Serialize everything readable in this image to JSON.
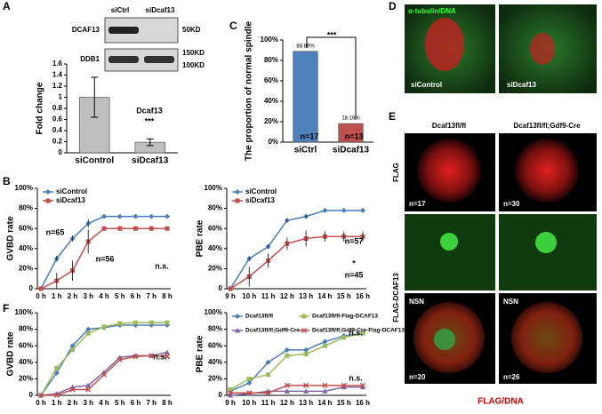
{
  "panels": {
    "A": "A",
    "B": "B",
    "C": "C",
    "D": "D",
    "E": "E",
    "F": "F"
  },
  "blot": {
    "lanes": [
      "siCtrl",
      "siDcaf13"
    ],
    "proteins": [
      "DCAF13",
      "DDB1"
    ],
    "sizes": [
      "50KD",
      "150KD",
      "100KD"
    ]
  },
  "panel_d": {
    "stain": "α-tubulin/DNA",
    "labels": [
      "siControl",
      "siDcaf13"
    ]
  },
  "panel_e": {
    "columns": [
      "Dcaf13fl/fl",
      "Dcaf13fl/fl;Gdf9-Cre"
    ],
    "rows": [
      "FLAG",
      "FLAG-DCAF13"
    ],
    "counts": [
      "n=17",
      "n=30",
      "n=20",
      "n=26"
    ],
    "stage": [
      "NSN",
      "NSN"
    ],
    "stain": "FLAG/DNA"
  },
  "chart_data": [
    {
      "type": "bar",
      "y_label": "Fold change",
      "categories": [
        "siControl",
        "siDcaf13"
      ],
      "values": [
        1.0,
        0.19
      ],
      "errors": [
        0.36,
        0.06
      ],
      "colors": [
        "#bfbfbf",
        "#bfbfbf"
      ],
      "ylim": [
        0,
        1.6
      ],
      "yticks": [
        0,
        0.2,
        0.4,
        0.6,
        0.8,
        1,
        1.2,
        1.4,
        1.6
      ],
      "annotations": [
        "Dcaf13",
        "***"
      ]
    },
    {
      "type": "bar",
      "y_label": "The proportion of normal spindle",
      "categories": [
        "siCtrl",
        "siDcaf13"
      ],
      "values": [
        88.89,
        18.18
      ],
      "value_labels": [
        "88.89%",
        "18.18%"
      ],
      "colors": [
        "#4f81bd",
        "#c0504d"
      ],
      "ylim": [
        0,
        100
      ],
      "yticks": [
        {
          "value": 0,
          "label": "0%"
        },
        {
          "value": 20,
          "label": "20%"
        },
        {
          "value": 40,
          "label": "40%"
        },
        {
          "value": 60,
          "label": "60%"
        },
        {
          "value": 80,
          "label": "80%"
        },
        {
          "value": 100,
          "label": "100%"
        }
      ],
      "annotations": [
        "n=17",
        "n=13",
        "***"
      ]
    },
    {
      "type": "line",
      "y_label": "GVBD rate",
      "categories": [
        "0 h",
        "1 h",
        "2 h",
        "3 h",
        "4 h",
        "5 h",
        "6 h",
        "7 h",
        "8 h"
      ],
      "series": [
        {
          "name": "siControl",
          "color": "#4a7ebb",
          "values": [
            0,
            30,
            50,
            65,
            72,
            72,
            72,
            72,
            72
          ],
          "errors": [
            0,
            3,
            3,
            4,
            0,
            0,
            0,
            0,
            0
          ]
        },
        {
          "name": "siDcaf13",
          "color": "#c0504d",
          "values": [
            0,
            8,
            18,
            47,
            60,
            60,
            60,
            60,
            60
          ],
          "errors": [
            0,
            8,
            10,
            12,
            0,
            0,
            0,
            0,
            0
          ]
        }
      ],
      "ylim": [
        0,
        100
      ],
      "yticks": [
        0,
        {
          "value": 20,
          "label": "20%"
        },
        {
          "value": 40,
          "label": "40%"
        },
        {
          "value": 60,
          "label": "60%"
        },
        {
          "value": 80,
          "label": "80%"
        },
        {
          "value": 100,
          "label": "100%"
        }
      ],
      "legend": "upper left",
      "annotations": [
        "n=65",
        "n=56",
        "n.s."
      ]
    },
    {
      "type": "line",
      "y_label": "PBE rate",
      "categories": [
        "9 h",
        "10 h",
        "11 h",
        "12 h",
        "13 h",
        "14 h",
        "15 h",
        "16 h"
      ],
      "series": [
        {
          "name": "siControl",
          "color": "#4a7ebb",
          "values": [
            0,
            30,
            42,
            68,
            72,
            78,
            78,
            78
          ],
          "errors": [
            0,
            2,
            2,
            2,
            2,
            0,
            0,
            0
          ]
        },
        {
          "name": "siDcaf13",
          "color": "#c0504d",
          "values": [
            0,
            12,
            28,
            45,
            50,
            52,
            52,
            52
          ],
          "errors": [
            0,
            10,
            7,
            6,
            8,
            5,
            5,
            5
          ]
        }
      ],
      "ylim": [
        0,
        100
      ],
      "yticks": [
        0,
        {
          "value": 20,
          "label": "20%"
        },
        {
          "value": 40,
          "label": "40%"
        },
        {
          "value": 60,
          "label": "60%"
        },
        {
          "value": 80,
          "label": "80%"
        },
        {
          "value": 100,
          "label": "100%"
        }
      ],
      "legend": "upper left",
      "annotations": [
        "n=57",
        "*",
        "n=45"
      ]
    },
    {
      "type": "line",
      "y_label": "GVBD rate",
      "categories": [
        "0 h",
        "1 h",
        "2 h",
        "3 h",
        "4 h",
        "5 h",
        "6 h",
        "7 h",
        "8 h"
      ],
      "series": [
        {
          "name": "Dcaf13fl/fl",
          "color": "#4a7ebb",
          "values": [
            0,
            27,
            60,
            80,
            82,
            85,
            85,
            85,
            85
          ]
        },
        {
          "name": "Dcaf13fl/fl-Flag-DCAF13",
          "color": "#9bbb59",
          "values": [
            0,
            33,
            55,
            75,
            83,
            87,
            88,
            88,
            88
          ]
        },
        {
          "name": "Dcaf13fl/fl;Gdf9-Cre",
          "color": "#7f64a8",
          "values": [
            0,
            2,
            10,
            12,
            28,
            46,
            48,
            48,
            52
          ]
        },
        {
          "name": "Dcaf13fl/fl;Gdf9-Cre-Flag-DCAF13",
          "color": "#c0504d",
          "values": [
            0,
            0,
            7,
            7,
            25,
            43,
            47,
            48,
            47
          ]
        }
      ],
      "ylim": [
        0,
        100
      ],
      "yticks": [
        0,
        {
          "value": 20,
          "label": "20%"
        },
        {
          "value": 40,
          "label": "40%"
        },
        {
          "value": 60,
          "label": "60%"
        },
        {
          "value": 80,
          "label": "80%"
        },
        {
          "value": 100,
          "label": "100%"
        }
      ],
      "legend": "none",
      "annotations": [
        "n.s."
      ]
    },
    {
      "type": "line",
      "y_label": "PBE rate",
      "categories": [
        "9 h",
        "10 h",
        "11 h",
        "12 h",
        "13 h",
        "14 h",
        "15 h",
        "16 h"
      ],
      "series": [
        {
          "name": "Dcaf13fl/fl",
          "color": "#4a7ebb",
          "values": [
            5,
            15,
            40,
            55,
            55,
            65,
            72,
            75
          ]
        },
        {
          "name": "Dcaf13fl/fl-Flag-DCAF13",
          "color": "#9bbb59",
          "values": [
            7,
            20,
            25,
            48,
            50,
            60,
            70,
            75
          ]
        },
        {
          "name": "Dcaf13fl/fl;Gdf9-Cre",
          "color": "#7f64a8",
          "values": [
            0,
            2,
            5,
            5,
            5,
            5,
            10,
            10
          ]
        },
        {
          "name": "Dcaf13fl/fl;Gdf9-Cre-Flag-DCAF13",
          "color": "#c0504d",
          "values": [
            3,
            3,
            3,
            12,
            12,
            12,
            12,
            12
          ]
        }
      ],
      "ylim": [
        0,
        100
      ],
      "yticks": [
        0,
        {
          "value": 20,
          "label": "20%"
        },
        {
          "value": 40,
          "label": "40%"
        },
        {
          "value": 60,
          "label": "60%"
        },
        {
          "value": 80,
          "label": "80%"
        },
        {
          "value": 100,
          "label": "100%"
        }
      ],
      "legend": "upper left",
      "annotations": [
        "n.s.",
        "n.s."
      ]
    }
  ]
}
